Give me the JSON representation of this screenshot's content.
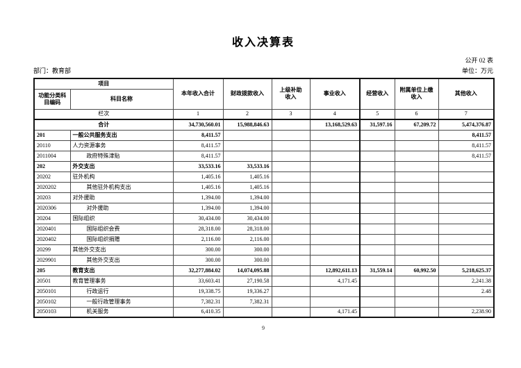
{
  "page": {
    "title": "收入决算表",
    "table_code": "公开 02 表",
    "department_label": "部门：教育部",
    "unit_label": "单位：万元",
    "page_number": "9"
  },
  "table": {
    "header": {
      "project": "项目",
      "code_col": "功能分类科\n目编码",
      "name_col": "科目名称",
      "value_cols": [
        "本年收入合计",
        "财政拨款收入",
        "上级补助\n收入",
        "事业收入",
        "经营收入",
        "附属单位上缴\n收入",
        "其他收入"
      ],
      "row_index_label": "栏次",
      "col_indices": [
        "1",
        "2",
        "3",
        "4",
        "5",
        "6",
        "7"
      ]
    },
    "rows": [
      {
        "code": "",
        "name": "合计",
        "level": "total",
        "values": [
          "34,730,560.01",
          "15,988,846.63",
          "",
          "13,168,529.63",
          "31,597.16",
          "67,209.72",
          "5,474,376.87"
        ]
      },
      {
        "code": "201",
        "name": "一般公共服务支出",
        "level": "section",
        "values": [
          "8,411.57",
          "",
          "",
          "",
          "",
          "",
          "8,411.57"
        ]
      },
      {
        "code": "20110",
        "name": "人力资源事务",
        "level": "item",
        "values": [
          "8,411.57",
          "",
          "",
          "",
          "",
          "",
          "8,411.57"
        ]
      },
      {
        "code": "2011004",
        "name": "政府特殊津贴",
        "level": "subitem",
        "values": [
          "8,411.57",
          "",
          "",
          "",
          "",
          "",
          "8,411.57"
        ]
      },
      {
        "code": "202",
        "name": "外交支出",
        "level": "section",
        "values": [
          "33,533.16",
          "33,533.16",
          "",
          "",
          "",
          "",
          ""
        ]
      },
      {
        "code": "20202",
        "name": "驻外机构",
        "level": "item",
        "values": [
          "1,405.16",
          "1,405.16",
          "",
          "",
          "",
          "",
          ""
        ]
      },
      {
        "code": "2020202",
        "name": "其他驻外机构支出",
        "level": "subitem",
        "values": [
          "1,405.16",
          "1,405.16",
          "",
          "",
          "",
          "",
          ""
        ]
      },
      {
        "code": "20203",
        "name": "对外援助",
        "level": "item",
        "values": [
          "1,394.00",
          "1,394.00",
          "",
          "",
          "",
          "",
          ""
        ]
      },
      {
        "code": "2020306",
        "name": "对外援助",
        "level": "subitem",
        "values": [
          "1,394.00",
          "1,394.00",
          "",
          "",
          "",
          "",
          ""
        ]
      },
      {
        "code": "20204",
        "name": "国际组织",
        "level": "item",
        "values": [
          "30,434.00",
          "30,434.00",
          "",
          "",
          "",
          "",
          ""
        ]
      },
      {
        "code": "2020401",
        "name": "国际组织会费",
        "level": "subitem",
        "values": [
          "28,318.00",
          "28,318.00",
          "",
          "",
          "",
          "",
          ""
        ]
      },
      {
        "code": "2020402",
        "name": "国际组织捐赠",
        "level": "subitem",
        "values": [
          "2,116.00",
          "2,116.00",
          "",
          "",
          "",
          "",
          ""
        ]
      },
      {
        "code": "20299",
        "name": "其他外交支出",
        "level": "item",
        "values": [
          "300.00",
          "300.00",
          "",
          "",
          "",
          "",
          ""
        ]
      },
      {
        "code": "2029901",
        "name": "其他外交支出",
        "level": "subitem",
        "values": [
          "300.00",
          "300.00",
          "",
          "",
          "",
          "",
          ""
        ]
      },
      {
        "code": "205",
        "name": "教育支出",
        "level": "section",
        "values": [
          "32,277,884.02",
          "14,074,095.88",
          "",
          "12,892,611.13",
          "31,559.14",
          "60,992.50",
          "5,218,625.37"
        ]
      },
      {
        "code": "20501",
        "name": "教育管理事务",
        "level": "item",
        "values": [
          "33,603.41",
          "27,190.58",
          "",
          "4,171.45",
          "",
          "",
          "2,241.38"
        ]
      },
      {
        "code": "2050101",
        "name": "行政运行",
        "level": "subitem",
        "values": [
          "19,338.75",
          "19,336.27",
          "",
          "",
          "",
          "",
          "2.48"
        ]
      },
      {
        "code": "2050102",
        "name": "一般行政管理事务",
        "level": "subitem",
        "values": [
          "7,382.31",
          "7,382.31",
          "",
          "",
          "",
          "",
          ""
        ]
      },
      {
        "code": "2050103",
        "name": "机关服务",
        "level": "subitem",
        "values": [
          "6,410.35",
          "",
          "",
          "4,171.45",
          "",
          "",
          "2,238.90"
        ]
      }
    ]
  }
}
